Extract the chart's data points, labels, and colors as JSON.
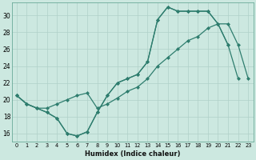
{
  "xlabel": "Humidex (Indice chaleur)",
  "background_color": "#cce8e0",
  "grid_color": "#b0d0c8",
  "line_color": "#2e7d6e",
  "xlim": [
    -0.5,
    23.5
  ],
  "ylim": [
    15.0,
    31.5
  ],
  "yticks": [
    16,
    18,
    20,
    22,
    24,
    26,
    28,
    30
  ],
  "xticks": [
    0,
    1,
    2,
    3,
    4,
    5,
    6,
    7,
    8,
    9,
    10,
    11,
    12,
    13,
    14,
    15,
    16,
    17,
    18,
    19,
    20,
    21,
    22,
    23
  ],
  "series1_x": [
    0,
    1,
    2,
    3,
    4,
    5,
    6,
    7,
    8,
    9,
    10,
    11,
    12,
    13,
    14,
    15,
    16,
    17,
    18,
    19,
    20,
    21
  ],
  "series1_y": [
    20.5,
    19.5,
    19.0,
    18.5,
    17.8,
    16.0,
    15.7,
    16.2,
    18.5,
    20.5,
    22.0,
    22.5,
    23.0,
    24.5,
    29.5,
    31.0,
    30.5,
    30.5,
    30.5,
    30.5,
    29.0,
    26.5
  ],
  "series2_x": [
    0,
    1,
    2,
    3,
    4,
    5,
    6,
    7,
    8,
    9,
    10,
    11,
    12,
    13,
    14,
    15,
    16,
    17,
    18,
    19,
    20,
    21,
    22
  ],
  "series2_y": [
    20.5,
    19.5,
    19.0,
    18.5,
    17.8,
    16.0,
    15.7,
    16.2,
    18.5,
    20.5,
    22.0,
    22.5,
    23.0,
    24.5,
    29.5,
    31.0,
    30.5,
    30.5,
    30.5,
    30.5,
    29.0,
    26.5,
    22.5
  ],
  "series3_x": [
    0,
    1,
    2,
    3,
    4,
    5,
    6,
    7,
    8,
    9,
    10,
    11,
    12,
    13,
    14,
    15,
    16,
    17,
    18,
    19,
    20,
    21,
    22,
    23
  ],
  "series3_y": [
    20.5,
    19.5,
    19.0,
    19.0,
    19.5,
    20.0,
    20.5,
    20.8,
    19.0,
    19.5,
    20.2,
    21.0,
    21.5,
    22.5,
    24.0,
    25.0,
    26.0,
    27.0,
    27.5,
    28.5,
    29.0,
    29.0,
    26.5,
    22.5
  ]
}
